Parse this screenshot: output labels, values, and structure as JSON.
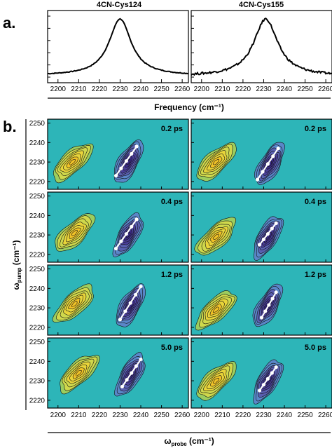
{
  "panel_a": {
    "label": "a.",
    "xlabel": "Frequency (cm⁻¹)",
    "xticks": [
      2200,
      2210,
      2220,
      2230,
      2240,
      2250,
      2260
    ],
    "xlim": [
      2195,
      2263
    ],
    "spectra": [
      {
        "title": "4CN-Cys124",
        "center": 2230,
        "width": 6.5,
        "baseline": 0.05,
        "noise": 0.006
      },
      {
        "title": "4CN-Cys155",
        "center": 2231,
        "width": 7.0,
        "baseline": 0.04,
        "noise": 0.018
      }
    ]
  },
  "panel_b": {
    "label": "b.",
    "ylabel_main": "ω",
    "ylabel_sub": "pump",
    "ylabel_unit": " (cm⁻¹)",
    "xlabel_main": "ω",
    "xlabel_sub": "probe",
    "xlabel_unit": " (cm⁻¹)",
    "xticks": [
      2200,
      2210,
      2220,
      2230,
      2240,
      2250,
      2260
    ],
    "yticks": [
      2220,
      2230,
      2240,
      2250
    ],
    "xlim": [
      2195,
      2263
    ],
    "ylim": [
      2216,
      2252
    ],
    "colors": {
      "background": "#2db5b8",
      "positive": [
        "#9ccd5e",
        "#cfd84c",
        "#e8d43a",
        "#f0c228"
      ],
      "negative": [
        "#5a86c8",
        "#5a5fb0",
        "#4a3e98",
        "#3a2a84"
      ],
      "contour_line": "#111111",
      "slope_line": "#ffffff"
    },
    "rows": [
      {
        "time": "0.2 ps",
        "panels": [
          {
            "pos": {
              "x": 2207,
              "y": 2230
            },
            "neg": {
              "x": 2234,
              "y": 2230
            },
            "slope": [
              [
                2228,
                2223
              ],
              [
                2238,
                2238
              ]
            ]
          },
          {
            "pos": {
              "x": 2207,
              "y": 2230
            },
            "neg": {
              "x": 2233,
              "y": 2229
            },
            "slope": [
              [
                2227,
                2221
              ],
              [
                2237,
                2237
              ]
            ]
          }
        ]
      },
      {
        "time": "0.4 ps",
        "panels": [
          {
            "pos": {
              "x": 2208,
              "y": 2231
            },
            "neg": {
              "x": 2234,
              "y": 2230
            },
            "slope": [
              [
                2228,
                2223
              ],
              [
                2238,
                2238
              ]
            ]
          },
          {
            "pos": {
              "x": 2207,
              "y": 2229
            },
            "neg": {
              "x": 2232,
              "y": 2229
            },
            "slope": [
              [
                2228,
                2225
              ],
              [
                2236,
                2236
              ]
            ]
          }
        ]
      },
      {
        "time": "1.2 ps",
        "panels": [
          {
            "pos": {
              "x": 2208,
              "y": 2232
            },
            "neg": {
              "x": 2235,
              "y": 2231
            },
            "slope": [
              [
                2230,
                2224
              ],
              [
                2240,
                2241
              ]
            ]
          },
          {
            "pos": {
              "x": 2207,
              "y": 2229
            },
            "neg": {
              "x": 2232,
              "y": 2231
            },
            "slope": [
              [
                2229,
                2225
              ],
              [
                2236,
                2238
              ]
            ]
          }
        ]
      },
      {
        "time": "5.0 ps",
        "panels": [
          {
            "pos": {
              "x": 2210,
              "y": 2234
            },
            "neg": {
              "x": 2235,
              "y": 2233
            },
            "slope": [
              [
                2231,
                2227
              ],
              [
                2240,
                2241
              ]
            ]
          },
          {
            "pos": {
              "x": 2207,
              "y": 2230
            },
            "neg": {
              "x": 2232,
              "y": 2230
            },
            "slope": [
              [
                2228,
                2225
              ],
              [
                2236,
                2237
              ]
            ]
          }
        ]
      }
    ]
  }
}
